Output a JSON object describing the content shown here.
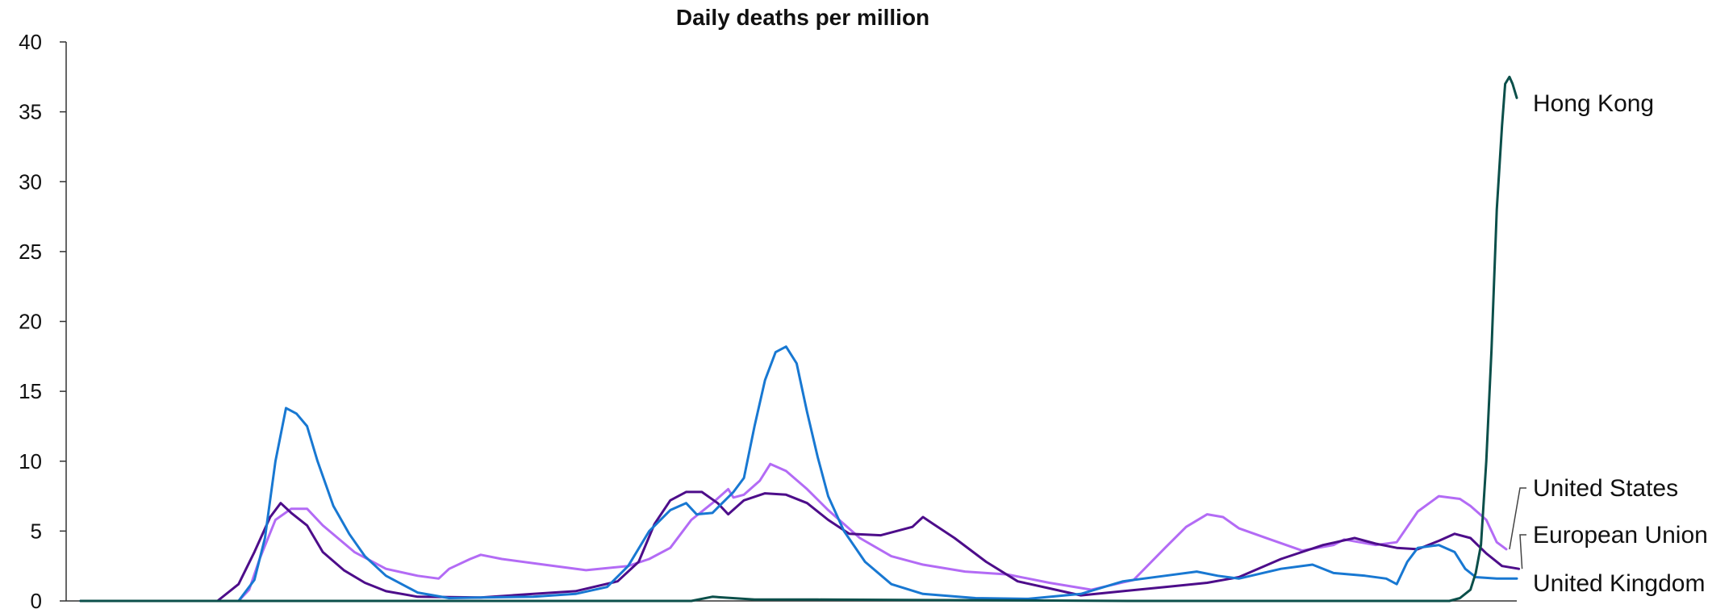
{
  "chart_data": {
    "type": "line",
    "title": "Daily deaths per million",
    "xlabel": "",
    "ylabel": "",
    "ylim": [
      0,
      40
    ],
    "yticks": [
      "0",
      "5",
      "10",
      "15",
      "20",
      "25",
      "30",
      "35",
      "40"
    ],
    "grid": false,
    "legend": "direct labels at right end of each line",
    "series": [
      {
        "name": "Hong Kong",
        "color": "#0b4f4a",
        "points": [
          [
            0,
            0
          ],
          [
            300,
            0
          ],
          [
            580,
            0
          ],
          [
            600,
            0.3
          ],
          [
            640,
            0.1
          ],
          [
            700,
            0.1
          ],
          [
            1000,
            0
          ],
          [
            1300,
            0
          ],
          [
            1310,
            0.2
          ],
          [
            1320,
            0.8
          ],
          [
            1325,
            2
          ],
          [
            1330,
            4
          ],
          [
            1335,
            10
          ],
          [
            1340,
            18
          ],
          [
            1345,
            28
          ],
          [
            1350,
            34
          ],
          [
            1353,
            37
          ],
          [
            1357,
            37.5
          ],
          [
            1360,
            37
          ],
          [
            1364,
            36
          ]
        ]
      },
      {
        "name": "United States",
        "color": "#b36bf5",
        "points": [
          [
            0,
            0
          ],
          [
            150,
            0
          ],
          [
            160,
            0.8
          ],
          [
            170,
            3
          ],
          [
            185,
            5.8
          ],
          [
            200,
            6.6
          ],
          [
            215,
            6.6
          ],
          [
            230,
            5.4
          ],
          [
            260,
            3.5
          ],
          [
            290,
            2.3
          ],
          [
            320,
            1.8
          ],
          [
            340,
            1.6
          ],
          [
            350,
            2.3
          ],
          [
            370,
            3.0
          ],
          [
            380,
            3.3
          ],
          [
            400,
            3.0
          ],
          [
            440,
            2.6
          ],
          [
            480,
            2.2
          ],
          [
            520,
            2.5
          ],
          [
            540,
            3.0
          ],
          [
            560,
            3.8
          ],
          [
            580,
            5.8
          ],
          [
            600,
            7.0
          ],
          [
            615,
            8.0
          ],
          [
            620,
            7.4
          ],
          [
            630,
            7.6
          ],
          [
            645,
            8.6
          ],
          [
            655,
            9.8
          ],
          [
            670,
            9.3
          ],
          [
            690,
            8.0
          ],
          [
            710,
            6.5
          ],
          [
            740,
            4.5
          ],
          [
            770,
            3.2
          ],
          [
            800,
            2.6
          ],
          [
            840,
            2.1
          ],
          [
            880,
            1.9
          ],
          [
            920,
            1.3
          ],
          [
            960,
            0.8
          ],
          [
            1000,
            1.5
          ],
          [
            1030,
            3.8
          ],
          [
            1050,
            5.3
          ],
          [
            1070,
            6.2
          ],
          [
            1085,
            6.0
          ],
          [
            1100,
            5.2
          ],
          [
            1130,
            4.4
          ],
          [
            1160,
            3.6
          ],
          [
            1190,
            4.0
          ],
          [
            1200,
            4.4
          ],
          [
            1230,
            4.0
          ],
          [
            1250,
            4.2
          ],
          [
            1270,
            6.4
          ],
          [
            1290,
            7.5
          ],
          [
            1310,
            7.3
          ],
          [
            1320,
            6.8
          ],
          [
            1335,
            5.8
          ],
          [
            1345,
            4.2
          ],
          [
            1354,
            3.7
          ]
        ]
      },
      {
        "name": "European Union",
        "color": "#4d0d8a",
        "points": [
          [
            0,
            0
          ],
          [
            130,
            0
          ],
          [
            150,
            1.2
          ],
          [
            165,
            3.5
          ],
          [
            180,
            6.0
          ],
          [
            190,
            7.0
          ],
          [
            200,
            6.3
          ],
          [
            215,
            5.4
          ],
          [
            230,
            3.5
          ],
          [
            250,
            2.2
          ],
          [
            270,
            1.3
          ],
          [
            290,
            0.7
          ],
          [
            320,
            0.3
          ],
          [
            380,
            0.25
          ],
          [
            430,
            0.5
          ],
          [
            470,
            0.7
          ],
          [
            510,
            1.4
          ],
          [
            530,
            2.8
          ],
          [
            545,
            5.5
          ],
          [
            560,
            7.2
          ],
          [
            575,
            7.8
          ],
          [
            590,
            7.8
          ],
          [
            605,
            7.0
          ],
          [
            615,
            6.2
          ],
          [
            630,
            7.2
          ],
          [
            650,
            7.7
          ],
          [
            670,
            7.6
          ],
          [
            690,
            7.0
          ],
          [
            710,
            5.8
          ],
          [
            730,
            4.8
          ],
          [
            760,
            4.7
          ],
          [
            790,
            5.3
          ],
          [
            800,
            6.0
          ],
          [
            810,
            5.5
          ],
          [
            830,
            4.5
          ],
          [
            860,
            2.8
          ],
          [
            890,
            1.4
          ],
          [
            920,
            0.9
          ],
          [
            950,
            0.4
          ],
          [
            990,
            0.7
          ],
          [
            1030,
            1.0
          ],
          [
            1070,
            1.3
          ],
          [
            1100,
            1.7
          ],
          [
            1140,
            3.0
          ],
          [
            1180,
            4.0
          ],
          [
            1210,
            4.5
          ],
          [
            1230,
            4.1
          ],
          [
            1250,
            3.8
          ],
          [
            1270,
            3.7
          ],
          [
            1290,
            4.3
          ],
          [
            1305,
            4.8
          ],
          [
            1320,
            4.5
          ],
          [
            1335,
            3.4
          ],
          [
            1350,
            2.5
          ],
          [
            1366,
            2.3
          ]
        ]
      },
      {
        "name": "United Kingdom",
        "color": "#1878d2",
        "points": [
          [
            0,
            0
          ],
          [
            150,
            0
          ],
          [
            165,
            1.5
          ],
          [
            175,
            4.5
          ],
          [
            185,
            10
          ],
          [
            195,
            13.8
          ],
          [
            205,
            13.4
          ],
          [
            215,
            12.5
          ],
          [
            225,
            10
          ],
          [
            240,
            6.8
          ],
          [
            255,
            4.8
          ],
          [
            270,
            3.2
          ],
          [
            290,
            1.8
          ],
          [
            320,
            0.6
          ],
          [
            350,
            0.2
          ],
          [
            380,
            0.25
          ],
          [
            430,
            0.3
          ],
          [
            470,
            0.5
          ],
          [
            500,
            1.0
          ],
          [
            520,
            2.5
          ],
          [
            540,
            5.0
          ],
          [
            560,
            6.5
          ],
          [
            575,
            7.0
          ],
          [
            585,
            6.2
          ],
          [
            600,
            6.3
          ],
          [
            620,
            7.8
          ],
          [
            630,
            8.8
          ],
          [
            640,
            12.5
          ],
          [
            650,
            15.8
          ],
          [
            660,
            17.8
          ],
          [
            670,
            18.2
          ],
          [
            680,
            17.0
          ],
          [
            690,
            13.5
          ],
          [
            700,
            10.3
          ],
          [
            710,
            7.5
          ],
          [
            725,
            5.0
          ],
          [
            745,
            2.8
          ],
          [
            770,
            1.2
          ],
          [
            800,
            0.5
          ],
          [
            850,
            0.2
          ],
          [
            900,
            0.15
          ],
          [
            950,
            0.5
          ],
          [
            990,
            1.4
          ],
          [
            1030,
            1.8
          ],
          [
            1060,
            2.1
          ],
          [
            1080,
            1.8
          ],
          [
            1100,
            1.6
          ],
          [
            1140,
            2.3
          ],
          [
            1170,
            2.6
          ],
          [
            1190,
            2.0
          ],
          [
            1220,
            1.8
          ],
          [
            1240,
            1.6
          ],
          [
            1250,
            1.2
          ],
          [
            1260,
            2.8
          ],
          [
            1270,
            3.8
          ],
          [
            1290,
            4.0
          ],
          [
            1305,
            3.5
          ],
          [
            1315,
            2.3
          ],
          [
            1325,
            1.7
          ],
          [
            1345,
            1.6
          ],
          [
            1364,
            1.6
          ]
        ]
      }
    ]
  }
}
